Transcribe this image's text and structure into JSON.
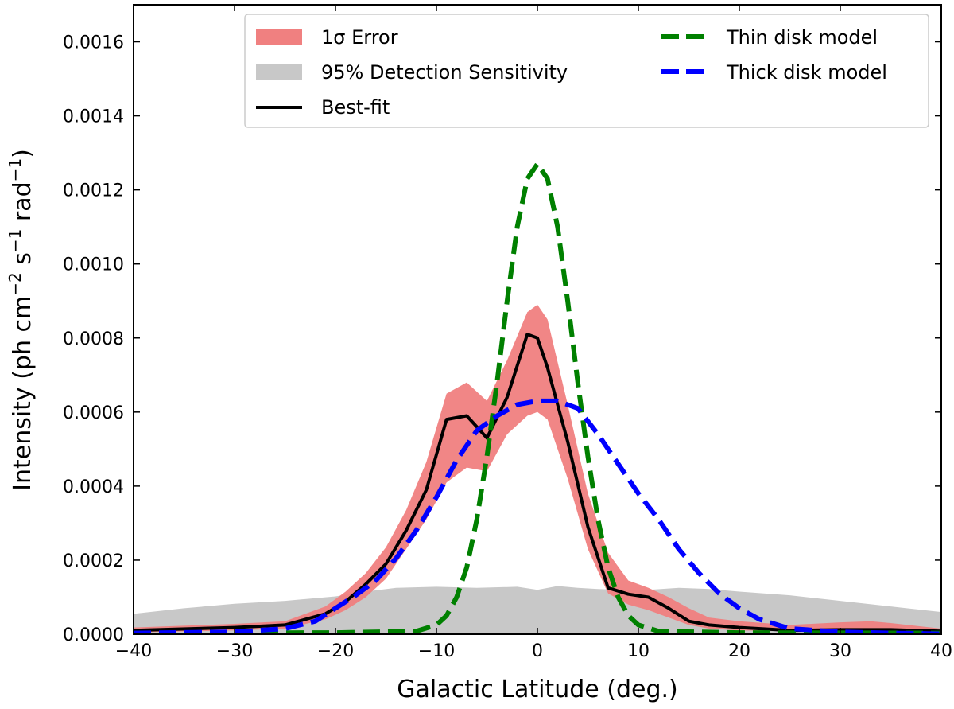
{
  "chart_data": {
    "type": "area",
    "xlabel": "Galactic Latitude (deg.)",
    "ylabel": {
      "prefix": "Intensity (ph cm",
      "exp1": "−2",
      "mid1": " s",
      "exp2": "−1",
      "mid2": " rad",
      "exp3": "−1",
      "suffix": ")"
    },
    "xlim": [
      -40,
      40
    ],
    "ylim": [
      0,
      0.0017
    ],
    "xticks": [
      -40,
      -30,
      -20,
      -10,
      0,
      10,
      20,
      30,
      40
    ],
    "xtick_labels": [
      "−40",
      "−30",
      "−20",
      "−10",
      "0",
      "10",
      "20",
      "30",
      "40"
    ],
    "yticks": [
      0.0,
      0.0002,
      0.0004,
      0.0006,
      0.0008,
      0.001,
      0.0012,
      0.0014,
      0.0016
    ],
    "ytick_labels": [
      "0.0000",
      "0.0002",
      "0.0004",
      "0.0006",
      "0.0008",
      "0.0010",
      "0.0012",
      "0.0014",
      "0.0016"
    ],
    "grid": false,
    "legend_position": "top-right",
    "colors": {
      "error_band": "#f08080",
      "sensitivity": "#c8c8c8",
      "best_fit": "#000000",
      "thin": "#008000",
      "thick": "#0000ff"
    },
    "legend": [
      {
        "label": "1σ Error",
        "kind": "patch",
        "series": "error"
      },
      {
        "label": "95% Detection Sensitivity",
        "kind": "patch",
        "series": "sensitivity"
      },
      {
        "label": "Best-fit",
        "kind": "line",
        "series": "best_fit"
      },
      {
        "label": "Thin disk model",
        "kind": "dashed",
        "series": "thin"
      },
      {
        "label": "Thick disk model",
        "kind": "dashed",
        "series": "thick"
      }
    ],
    "series": [
      {
        "name": "95% Detection Sensitivity",
        "key": "sensitivity",
        "kind": "fill",
        "x": [
          -40,
          -35,
          -30,
          -25,
          -20,
          -17,
          -14,
          -10,
          -6,
          -2,
          0,
          2,
          4,
          6,
          10,
          14,
          17,
          20,
          25,
          30,
          35,
          40
        ],
        "upper": [
          5.5e-05,
          7e-05,
          8.2e-05,
          9e-05,
          0.000102,
          0.000115,
          0.000125,
          0.000128,
          0.000125,
          0.000128,
          0.00012,
          0.00013,
          0.000125,
          0.000122,
          0.000118,
          0.000125,
          0.000122,
          0.000115,
          0.000105,
          9e-05,
          7.5e-05,
          6e-05
        ],
        "lower": [
          0,
          0,
          0,
          0,
          0,
          0,
          0,
          0,
          0,
          0,
          0,
          0,
          0,
          0,
          0,
          0,
          0,
          0,
          0,
          0,
          0,
          0
        ]
      },
      {
        "name": "1σ Error",
        "key": "error",
        "kind": "fill",
        "x": [
          -40,
          -30,
          -25,
          -21,
          -19,
          -17,
          -15,
          -13,
          -11,
          -9,
          -7,
          -5,
          -3,
          -1,
          0,
          1,
          3,
          5,
          7,
          9,
          11,
          13,
          15,
          17,
          20,
          25,
          30,
          33,
          35,
          40
        ],
        "upper": [
          1.8e-05,
          2.8e-05,
          3.5e-05,
          7.5e-05,
          0.000115,
          0.000165,
          0.000235,
          0.000335,
          0.000465,
          0.00065,
          0.00068,
          0.00063,
          0.00074,
          0.00087,
          0.00089,
          0.00085,
          0.00062,
          0.00038,
          0.00022,
          0.000145,
          0.000125,
          0.0001,
          7e-05,
          4.5e-05,
          3.5e-05,
          2.5e-05,
          3.2e-05,
          3.5e-05,
          3e-05,
          1.5e-05
        ],
        "lower": [
          5e-06,
          1e-05,
          1.5e-05,
          4e-05,
          6.5e-05,
          0.0001,
          0.00015,
          0.00023,
          0.00031,
          0.00041,
          0.00045,
          0.00044,
          0.00054,
          0.00059,
          0.0006,
          0.00058,
          0.00042,
          0.00023,
          0.00011,
          8e-05,
          6.5e-05,
          4.5e-05,
          2.5e-05,
          1.5e-05,
          1e-05,
          8e-06,
          1.2e-05,
          1.4e-05,
          1.2e-05,
          5e-06
        ]
      },
      {
        "name": "Best-fit",
        "key": "best_fit",
        "kind": "line",
        "x": [
          -40,
          -30,
          -25,
          -21,
          -19,
          -17,
          -15,
          -13,
          -11,
          -9,
          -7,
          -5,
          -3,
          -1,
          0,
          1,
          3,
          5,
          7,
          9,
          11,
          13,
          15,
          17,
          20,
          25,
          30,
          35,
          40
        ],
        "y": [
          1e-05,
          1.8e-05,
          2.5e-05,
          5.5e-05,
          8.8e-05,
          0.000135,
          0.00019,
          0.00028,
          0.00039,
          0.00058,
          0.00059,
          0.00053,
          0.00064,
          0.00081,
          0.0008,
          0.00072,
          0.00052,
          0.00029,
          0.000125,
          0.000108,
          0.0001,
          7e-05,
          3.5e-05,
          2.5e-05,
          1.8e-05,
          1e-05,
          1.2e-05,
          1.2e-05,
          8e-06
        ]
      },
      {
        "name": "Thin disk model",
        "key": "thin",
        "kind": "dashed",
        "x": [
          -40,
          -20,
          -12,
          -10,
          -9,
          -8,
          -7,
          -6,
          -5,
          -4,
          -3,
          -2,
          -1,
          0,
          1,
          2,
          3,
          4,
          5,
          6,
          7,
          8,
          9,
          10,
          12,
          20,
          40
        ],
        "y": [
          3e-06,
          4e-06,
          8e-06,
          2.5e-05,
          5e-05,
          0.0001,
          0.00018,
          0.00031,
          0.00048,
          0.00068,
          0.0009,
          0.0011,
          0.00123,
          0.00127,
          0.00123,
          0.0011,
          0.0009,
          0.00068,
          0.00048,
          0.00031,
          0.00018,
          0.0001,
          5e-05,
          2.5e-05,
          8e-06,
          4e-06,
          3e-06
        ]
      },
      {
        "name": "Thick disk model",
        "key": "thick",
        "kind": "dashed",
        "x": [
          -40,
          -30,
          -25,
          -22,
          -20,
          -18,
          -16,
          -14,
          -12,
          -10,
          -8,
          -6,
          -4,
          -2,
          0,
          2,
          4,
          6,
          8,
          10,
          12,
          14,
          16,
          18,
          20,
          22,
          25,
          30,
          35,
          40
        ],
        "y": [
          3e-06,
          6e-06,
          1.5e-05,
          3.5e-05,
          7e-05,
          0.000105,
          0.000145,
          0.000205,
          0.00028,
          0.00037,
          0.00047,
          0.00055,
          0.00059,
          0.00062,
          0.00063,
          0.00063,
          0.00061,
          0.00054,
          0.00046,
          0.00038,
          0.00031,
          0.00023,
          0.000165,
          0.00011,
          7e-05,
          4e-05,
          1.5e-05,
          6e-06,
          3e-06,
          1e-06
        ]
      }
    ]
  }
}
